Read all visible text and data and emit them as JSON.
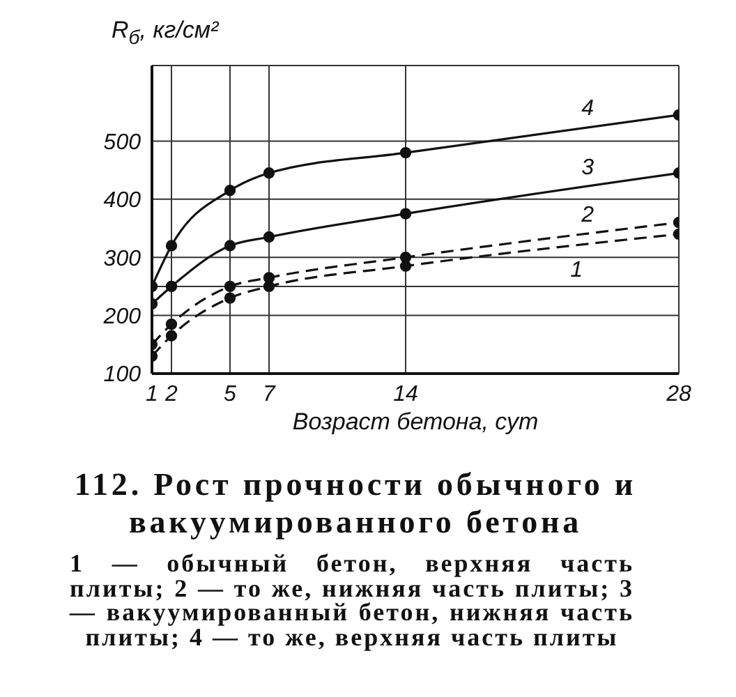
{
  "chart_data": {
    "type": "line",
    "title": "112. Рост прочности обычного и вакуумированного бетона",
    "ylabel": "R$_{б}$, кг/см²",
    "xlabel": "Возраст бетона, сут",
    "annotations": [
      "1 — обычный бетон, верхняя часть плиты; 2 — то же, нижняя часть плиты; 3 — вакуумированный бетон, нижняя часть плиты; 4 — то же, верхняя часть плиты"
    ],
    "x": [
      1,
      2,
      5,
      7,
      14,
      28
    ],
    "series": [
      {
        "name": "1",
        "color": "#111111",
        "line_style": "dashed",
        "values": [
          130,
          165,
          230,
          250,
          285,
          340
        ]
      },
      {
        "name": "2",
        "color": "#111111",
        "line_style": "dashed",
        "values": [
          150,
          185,
          250,
          265,
          300,
          360
        ]
      },
      {
        "name": "3",
        "color": "#111111",
        "line_style": "solid",
        "values": [
          220,
          250,
          320,
          335,
          375,
          445
        ]
      },
      {
        "name": "4",
        "color": "#111111",
        "line_style": "solid",
        "values": [
          250,
          320,
          415,
          445,
          480,
          545
        ]
      }
    ],
    "xlim": [
      1,
      28
    ],
    "ylim": [
      100,
      630
    ],
    "xticks": [
      1,
      2,
      5,
      7,
      14,
      28
    ],
    "yticks": [
      100,
      200,
      {
        "value": 250,
        "label": null
      },
      300,
      400,
      500
    ],
    "grid": true,
    "marker": "circle"
  }
}
